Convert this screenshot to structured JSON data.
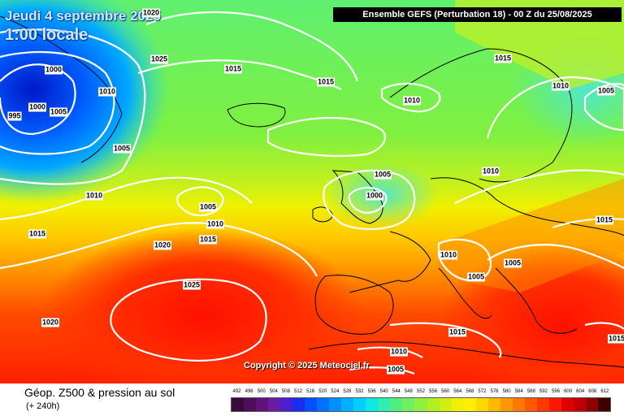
{
  "header": {
    "date_line_1": "Jeudi 4 septembre 2025",
    "date_line_2": "1:00 locale",
    "model_banner": "Ensemble GEFS  (Perturbation 18)  -  00 Z du 25/08/2025"
  },
  "map": {
    "copyright": "Copyright © 2025 Meteociel.fr",
    "pressure_labels": [
      "1000",
      "1005",
      "1010",
      "1015",
      "1020",
      "1025",
      "995",
      "1020"
    ]
  },
  "footer": {
    "title": "Géop. Z500 & pression au sol",
    "subtitle": "(+ 240h)",
    "scale_values": [
      "492",
      "496",
      "500",
      "504",
      "508",
      "512",
      "516",
      "520",
      "524",
      "528",
      "532",
      "536",
      "540",
      "544",
      "548",
      "552",
      "556",
      "560",
      "564",
      "568",
      "572",
      "576",
      "580",
      "584",
      "588",
      "592",
      "596",
      "600",
      "604",
      "608",
      "612"
    ],
    "scale_colors": [
      "#3a0a3a",
      "#4e0e58",
      "#62127a",
      "#6a1da3",
      "#4b1fd0",
      "#1a2cf0",
      "#0050ff",
      "#0070ff",
      "#0090ff",
      "#00b0ff",
      "#00d0ff",
      "#10e8e8",
      "#30f0b0",
      "#50f080",
      "#70f060",
      "#90f040",
      "#b0f020",
      "#d0f010",
      "#f0f000",
      "#fff000",
      "#ffd800",
      "#ffb800",
      "#ff9800",
      "#ff7800",
      "#ff5800",
      "#ff3800",
      "#ff1800",
      "#e00000",
      "#c00000",
      "#900000",
      "#400000"
    ]
  }
}
